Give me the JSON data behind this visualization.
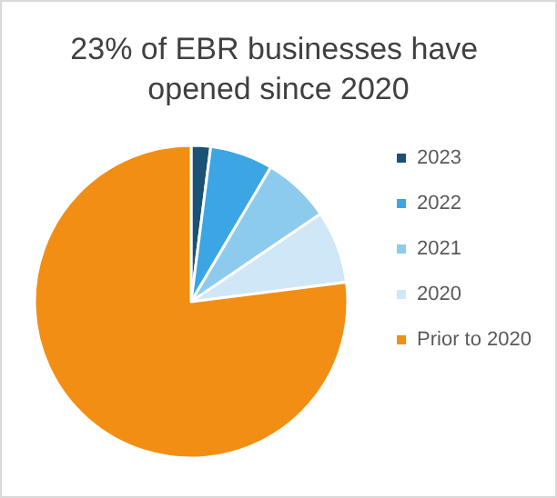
{
  "chart_data": {
    "type": "pie",
    "title": "23% of EBR businesses have opened since 2020",
    "categories": [
      "2023",
      "2022",
      "2021",
      "2020",
      "Prior to 2020"
    ],
    "values": [
      2,
      6.5,
      7,
      7.5,
      77
    ],
    "colors": [
      "#1a5276",
      "#3ca5e4",
      "#8ccbee",
      "#cfe7f7",
      "#f28e13"
    ],
    "legend": "right"
  }
}
